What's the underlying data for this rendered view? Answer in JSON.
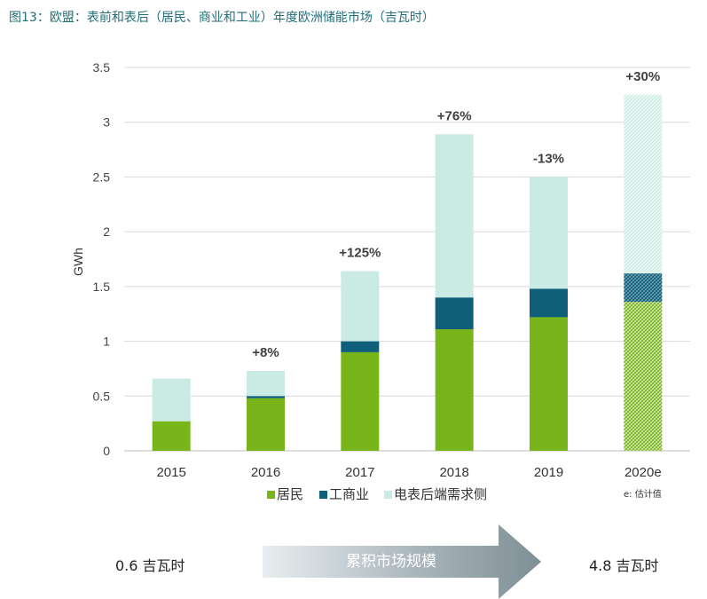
{
  "figure_title": "图13：欧盟：表前和表后（居民、商业和工业）年度欧洲储能市场（吉瓦时）",
  "chart_data": {
    "type": "bar",
    "stacked": true,
    "categories": [
      "2015",
      "2016",
      "2017",
      "2018",
      "2019",
      "2020e"
    ],
    "series": [
      {
        "name": "居民",
        "color": "#77b51b",
        "values": [
          0.27,
          0.48,
          0.9,
          1.11,
          1.22,
          1.36
        ]
      },
      {
        "name": "工商业",
        "color": "#0f5f7b",
        "values": [
          0.0,
          0.02,
          0.1,
          0.29,
          0.26,
          0.26
        ]
      },
      {
        "name": "电表后端需求侧",
        "color": "#c9ebe3",
        "values": [
          0.39,
          0.23,
          0.64,
          1.49,
          1.02,
          1.63
        ]
      }
    ],
    "growth_labels": [
      "",
      "+8%",
      "+125%",
      "+76%",
      "-13%",
      "+30%"
    ],
    "estimated_categories": [
      "2020e"
    ],
    "ylabel": "GWh",
    "ylim": [
      0,
      3.5
    ],
    "yticks": [
      "0",
      "0.5",
      "1",
      "1.5",
      "2",
      "2.5",
      "3",
      "3.5"
    ],
    "grid": true,
    "legend_position": "bottom",
    "note": "e: 估计值"
  },
  "cumulative": {
    "start": "0.6 吉瓦时",
    "label": "累积市场规模",
    "end": "4.8 吉瓦时"
  }
}
